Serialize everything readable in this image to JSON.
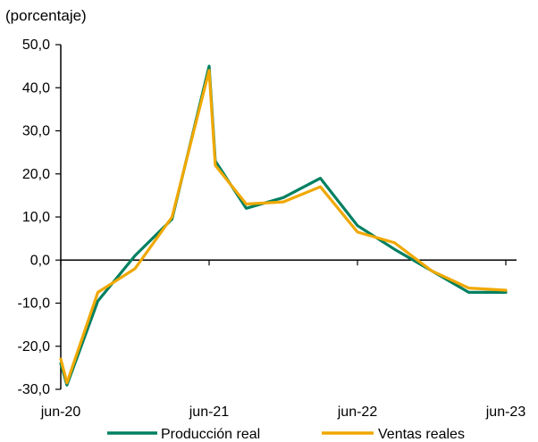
{
  "chart_data": {
    "type": "line",
    "unit_label": "(porcentaje)",
    "title": "",
    "xlabel": "",
    "ylabel": "",
    "ylim": [
      -30,
      50
    ],
    "yticks": [
      "50,0",
      "40,0",
      "30,0",
      "20,0",
      "10,0",
      "0,0",
      "-10,0",
      "-20,0",
      "-30,0"
    ],
    "ytick_values": [
      50,
      40,
      30,
      20,
      10,
      0,
      -10,
      -20,
      -30
    ],
    "x": [
      "jun-20",
      "jul-20",
      "sep-20",
      "nov-20",
      "ene-21",
      "mar-21",
      "jun-21",
      "sep-21",
      "dic-21",
      "mar-22",
      "jun-22",
      "sep-22",
      "dic-22",
      "mar-23",
      "jun-23"
    ],
    "xtick_labels": [
      "jun-20",
      "jun-21",
      "jun-22",
      "jun-23"
    ],
    "xtick_positions": [
      0,
      12,
      24,
      36
    ],
    "x_months": [
      0,
      0.5,
      3,
      6,
      9,
      12,
      12.5,
      15,
      18,
      21,
      24,
      27,
      30,
      33,
      36
    ],
    "series": [
      {
        "name": "Producción real",
        "color": "#008061",
        "values": [
          -24,
          -29,
          -9.5,
          1,
          9.5,
          45,
          23,
          12,
          14.5,
          19,
          8,
          2.5,
          -2.5,
          -7.5,
          -7.5
        ]
      },
      {
        "name": "Ventas reales",
        "color": "#f0a800",
        "values": [
          -23,
          -28.5,
          -7.5,
          -2,
          10,
          44,
          22,
          13,
          13.5,
          17,
          6.5,
          4,
          -2.5,
          -6.5,
          -7
        ]
      }
    ],
    "legend_position": "bottom",
    "grid": false
  }
}
